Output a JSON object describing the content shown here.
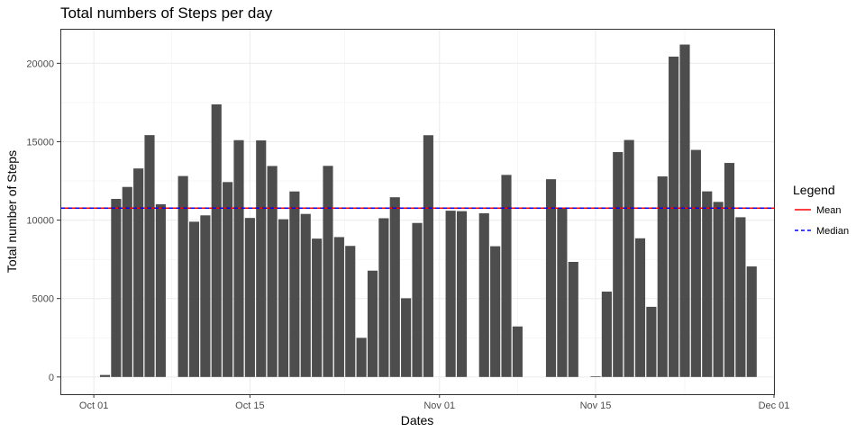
{
  "chart_data": {
    "type": "bar",
    "title": "Total numbers of Steps per day",
    "xlabel": "Dates",
    "ylabel": "Total number of Steps",
    "xlim": [
      "2012-09-28",
      "2012-12-01"
    ],
    "ylim": [
      -1100,
      22200
    ],
    "xticks": [
      {
        "date": "2012-10-01",
        "label": "Oct 01"
      },
      {
        "date": "2012-10-15",
        "label": "Oct 15"
      },
      {
        "date": "2012-11-01",
        "label": "Nov 01"
      },
      {
        "date": "2012-11-15",
        "label": "Nov 15"
      },
      {
        "date": "2012-12-01",
        "label": "Dec 01"
      }
    ],
    "yticks": [
      {
        "value": 0,
        "label": "0"
      },
      {
        "value": 5000,
        "label": "5000"
      },
      {
        "value": 10000,
        "label": "10000"
      },
      {
        "value": 15000,
        "label": "15000"
      },
      {
        "value": 20000,
        "label": "20000"
      }
    ],
    "dates": [
      "2012-10-02",
      "2012-10-03",
      "2012-10-04",
      "2012-10-05",
      "2012-10-06",
      "2012-10-07",
      "2012-10-09",
      "2012-10-10",
      "2012-10-11",
      "2012-10-12",
      "2012-10-13",
      "2012-10-14",
      "2012-10-15",
      "2012-10-16",
      "2012-10-17",
      "2012-10-18",
      "2012-10-19",
      "2012-10-20",
      "2012-10-21",
      "2012-10-22",
      "2012-10-23",
      "2012-10-24",
      "2012-10-25",
      "2012-10-26",
      "2012-10-27",
      "2012-10-28",
      "2012-10-29",
      "2012-10-30",
      "2012-10-31",
      "2012-11-02",
      "2012-11-03",
      "2012-11-05",
      "2012-11-06",
      "2012-11-07",
      "2012-11-08",
      "2012-11-11",
      "2012-11-12",
      "2012-11-13",
      "2012-11-15",
      "2012-11-16",
      "2012-11-17",
      "2012-11-18",
      "2012-11-19",
      "2012-11-20",
      "2012-11-21",
      "2012-11-22",
      "2012-11-23",
      "2012-11-24",
      "2012-11-25",
      "2012-11-26",
      "2012-11-27",
      "2012-11-28",
      "2012-11-29"
    ],
    "values": [
      126,
      11352,
      12116,
      13294,
      15420,
      11015,
      12811,
      9900,
      10304,
      17382,
      12426,
      15098,
      10139,
      15084,
      13452,
      10056,
      11829,
      10395,
      8821,
      13460,
      8918,
      8355,
      2492,
      6778,
      10119,
      11458,
      5018,
      9819,
      15414,
      10600,
      10571,
      10439,
      8334,
      12883,
      3219,
      12608,
      10765,
      7336,
      41,
      5441,
      14339,
      15110,
      8841,
      4472,
      12787,
      20427,
      21194,
      14478,
      11834,
      11162,
      13646,
      10183,
      7047
    ],
    "color": "#4d4d4d",
    "reference_lines": [
      {
        "name": "Mean",
        "value": 10766,
        "color": "#ff0000",
        "style": "solid"
      },
      {
        "name": "Median",
        "value": 10765,
        "color": "#0000ff",
        "style": "dashed"
      }
    ],
    "legend": {
      "title": "Legend",
      "position": "right"
    },
    "grid": true
  }
}
